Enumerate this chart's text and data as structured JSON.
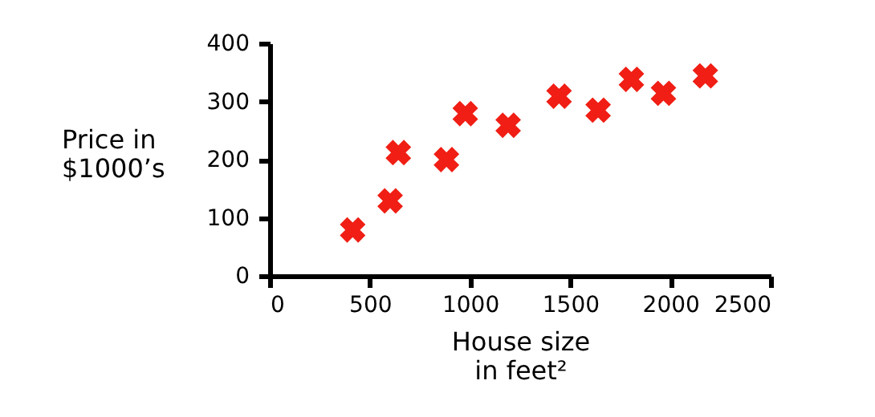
{
  "chart_data": {
    "type": "scatter",
    "xlabel": "House size\nin feet²",
    "ylabel": "Price in\n$1000’s",
    "x": [
      414,
      601,
      642,
      882,
      976,
      1190,
      1444,
      1639,
      1805,
      1965,
      2174
    ],
    "series": [
      {
        "color": "#f01e14",
        "values": [
          79,
          129,
          212,
          200,
          279,
          259,
          309,
          285,
          338,
          314,
          344
        ]
      }
    ],
    "xlim": [
      0,
      2500
    ],
    "xticks": [
      0,
      500,
      1000,
      1500,
      2000,
      2500
    ],
    "ylim": [
      0,
      400
    ],
    "yticks": [
      0,
      100,
      200,
      300,
      400
    ],
    "grid": false,
    "marker": "cross"
  }
}
